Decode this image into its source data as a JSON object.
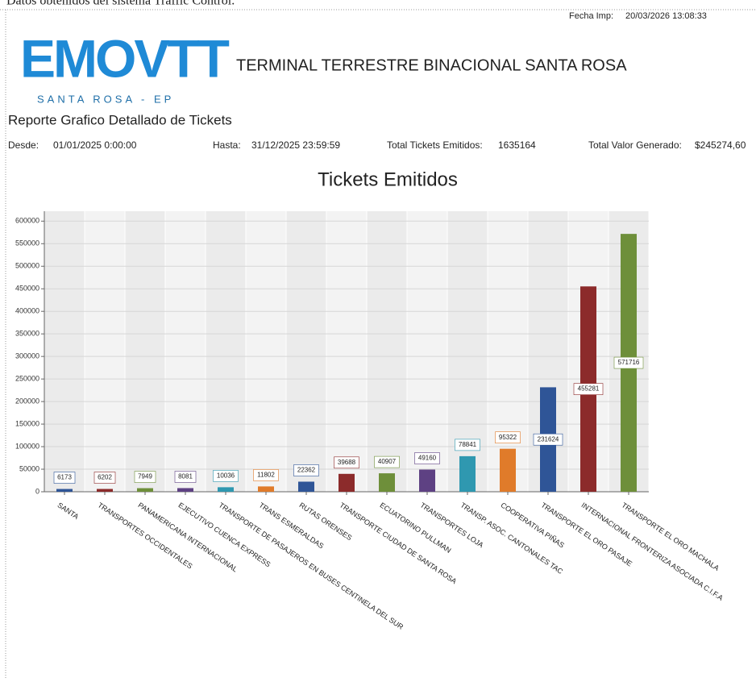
{
  "header": {
    "source_note": "Datos obtenidos del sistema Traffic Control.",
    "print_label": "Fecha Imp:",
    "print_date": "20/03/2026 13:08:33",
    "logo": "EMOVTT",
    "logo_sub": "SANTA ROSA - EP",
    "organization": "TERMINAL TERRESTRE BINACIONAL SANTA ROSA",
    "report_title": "Reporte Grafico Detallado de Tickets",
    "from_label": "Desde:",
    "from": "01/01/2025 0:00:00",
    "to_label": "Hasta:",
    "to": "31/12/2025 23:59:59",
    "tickets_label": "Total Tickets Emitidos:",
    "tickets": "1635164",
    "value_label": "Total Valor Generado:",
    "value": "$245274,60"
  },
  "chart_data": {
    "type": "bar",
    "title": "Tickets Emitidos",
    "categories": [
      "SANTA",
      "TRANSPORTES OCCIDENTALES",
      "PANAMERICANA INTERNACIONAL",
      "EJECUTIVO CUENCA EXPRESS",
      "TRANSPORTE DE PASAJEROS EN BUSES  CENTINELA DEL SUR",
      "TRANS ESMERALDAS",
      "RUTAS ORENSES",
      "TRANSPORTE CIUDAD DE SANTA ROSA",
      "ECUATORINO PULLMAN",
      "TRANSPORTES LOJA",
      "TRANSP. ASOC. CANTONALES TAC",
      "COOPERATIVA PIÑAS",
      "TRANSPORTE EL ORO PASAJE",
      "INTERNACIONAL FRONTERIZA ASOCIADA C.I.F.A",
      "TRANSPORTE EL ORO MACHALA"
    ],
    "values": [
      6173,
      6202,
      7949,
      8081,
      10036,
      11802,
      22362,
      39688,
      40907,
      49160,
      78841,
      95322,
      231624,
      455281,
      571716
    ],
    "colors": [
      "#2f5597",
      "#8c2b2b",
      "#6e8f3a",
      "#5e4183",
      "#2f98b0",
      "#e07b2a",
      "#2f5597",
      "#8c2b2b",
      "#6e8f3a",
      "#5e4183",
      "#2f98b0",
      "#e07b2a",
      "#2f5597",
      "#8c2b2b",
      "#6e8f3a"
    ],
    "ylim": [
      0,
      622000
    ],
    "yticks": [
      0,
      50000,
      100000,
      150000,
      200000,
      250000,
      300000,
      350000,
      400000,
      450000,
      500000,
      550000,
      600000
    ],
    "grid": true
  }
}
